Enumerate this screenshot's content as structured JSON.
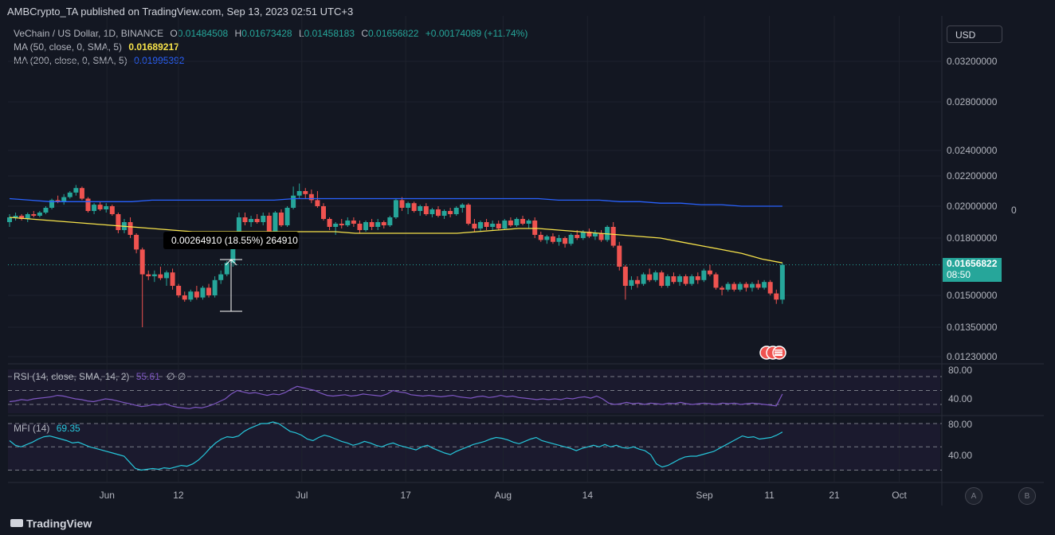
{
  "header": {
    "publisher": "AMBCrypto_TA published on TradingView.com, Sep 13, 2023 02:51 UTC+3"
  },
  "legend": {
    "symbol": "VeChain / US Dollar, 1D, BINANCE",
    "ohlc": {
      "o_label": "O",
      "o": "0.01484508",
      "h_label": "H",
      "h": "0.01673428",
      "l_label": "L",
      "l": "0.01458183",
      "c_label": "C",
      "c": "0.01656822",
      "change": "+0.00174089 (+11.74%)"
    },
    "ma50_label": "MA (50, close, 0, SMA, 5)",
    "ma50_value": "0.01689217",
    "ma200_label": "MA (200, close, 0, SMA, 5)",
    "ma200_value": "0.01995392"
  },
  "toolbar": {
    "currency": "USD"
  },
  "price_tag": {
    "price": "0.01656822",
    "countdown": "08:50"
  },
  "right_zero": "0",
  "measure": {
    "text": "0.00264910 (18.55%) 264910"
  },
  "rsi": {
    "label": "RSI (14, close, SMA, 14, 2)",
    "value": "55.61",
    "extra": "∅ ∅",
    "ticks": [
      "80.00",
      "40.00"
    ]
  },
  "mfi": {
    "label": "MFI (14)",
    "value": "69.35",
    "ticks": [
      "80.00",
      "40.00"
    ]
  },
  "branding": "TradingView",
  "bottom_buttons": [
    "A",
    "B"
  ],
  "colors": {
    "up": "#26a69a",
    "down": "#ef5350",
    "ma50": "#f7e34a",
    "ma200": "#2962ff",
    "rsi": "#7e57c2",
    "mfi": "#26c6da",
    "background": "#131722"
  },
  "chart_data": {
    "type": "candlestick",
    "x_ticks": [
      "Jun",
      "12",
      "Jul",
      "17",
      "Aug",
      "14",
      "Sep",
      "11",
      "21",
      "Oct"
    ],
    "y_ticks": [
      "0.03200000",
      "0.02800000",
      "0.02400000",
      "0.02200000",
      "0.02000000",
      "0.01800000",
      "0.01500000",
      "0.01350000",
      "0.01230000"
    ],
    "start_date": "2023-05-17",
    "end_date": "2023-09-13",
    "candles": [
      {
        "o": 0.019,
        "h": 0.0195,
        "l": 0.0187,
        "c": 0.0193
      },
      {
        "o": 0.0193,
        "h": 0.0196,
        "l": 0.0191,
        "c": 0.0194
      },
      {
        "o": 0.0194,
        "h": 0.0195,
        "l": 0.0191,
        "c": 0.0192
      },
      {
        "o": 0.0192,
        "h": 0.0196,
        "l": 0.019,
        "c": 0.0195
      },
      {
        "o": 0.0195,
        "h": 0.0197,
        "l": 0.0193,
        "c": 0.0194
      },
      {
        "o": 0.0194,
        "h": 0.0197,
        "l": 0.0193,
        "c": 0.0196
      },
      {
        "o": 0.0196,
        "h": 0.02,
        "l": 0.0195,
        "c": 0.0199
      },
      {
        "o": 0.0199,
        "h": 0.0205,
        "l": 0.0198,
        "c": 0.0204
      },
      {
        "o": 0.0204,
        "h": 0.0207,
        "l": 0.0202,
        "c": 0.0203
      },
      {
        "o": 0.0203,
        "h": 0.0208,
        "l": 0.0201,
        "c": 0.0206
      },
      {
        "o": 0.0206,
        "h": 0.021,
        "l": 0.0205,
        "c": 0.0209
      },
      {
        "o": 0.0209,
        "h": 0.0214,
        "l": 0.0207,
        "c": 0.0212
      },
      {
        "o": 0.0212,
        "h": 0.0213,
        "l": 0.0204,
        "c": 0.0205
      },
      {
        "o": 0.0205,
        "h": 0.0206,
        "l": 0.0196,
        "c": 0.0197
      },
      {
        "o": 0.0197,
        "h": 0.0202,
        "l": 0.0195,
        "c": 0.0201
      },
      {
        "o": 0.0201,
        "h": 0.0203,
        "l": 0.0197,
        "c": 0.0198
      },
      {
        "o": 0.0198,
        "h": 0.0202,
        "l": 0.0196,
        "c": 0.02
      },
      {
        "o": 0.02,
        "h": 0.0201,
        "l": 0.0194,
        "c": 0.0195
      },
      {
        "o": 0.0195,
        "h": 0.0196,
        "l": 0.0183,
        "c": 0.0185
      },
      {
        "o": 0.0185,
        "h": 0.0192,
        "l": 0.0183,
        "c": 0.019
      },
      {
        "o": 0.019,
        "h": 0.0193,
        "l": 0.018,
        "c": 0.0182
      },
      {
        "o": 0.0182,
        "h": 0.0183,
        "l": 0.0172,
        "c": 0.0174
      },
      {
        "o": 0.0174,
        "h": 0.0175,
        "l": 0.0135,
        "c": 0.0161
      },
      {
        "o": 0.0161,
        "h": 0.0163,
        "l": 0.0158,
        "c": 0.016
      },
      {
        "o": 0.016,
        "h": 0.0163,
        "l": 0.0157,
        "c": 0.0161
      },
      {
        "o": 0.0161,
        "h": 0.0165,
        "l": 0.0158,
        "c": 0.0159
      },
      {
        "o": 0.0159,
        "h": 0.0163,
        "l": 0.0155,
        "c": 0.0162
      },
      {
        "o": 0.0162,
        "h": 0.0164,
        "l": 0.0153,
        "c": 0.0155
      },
      {
        "o": 0.0155,
        "h": 0.0156,
        "l": 0.0149,
        "c": 0.015
      },
      {
        "o": 0.015,
        "h": 0.0152,
        "l": 0.0147,
        "c": 0.0148
      },
      {
        "o": 0.0148,
        "h": 0.0153,
        "l": 0.0147,
        "c": 0.0152
      },
      {
        "o": 0.0152,
        "h": 0.0155,
        "l": 0.0148,
        "c": 0.0149
      },
      {
        "o": 0.0149,
        "h": 0.0155,
        "l": 0.0148,
        "c": 0.0154
      },
      {
        "o": 0.0154,
        "h": 0.0156,
        "l": 0.0149,
        "c": 0.015
      },
      {
        "o": 0.015,
        "h": 0.016,
        "l": 0.0149,
        "c": 0.0158
      },
      {
        "o": 0.0158,
        "h": 0.0163,
        "l": 0.0156,
        "c": 0.0161
      },
      {
        "o": 0.0161,
        "h": 0.0168,
        "l": 0.016,
        "c": 0.0167
      },
      {
        "o": 0.0167,
        "h": 0.018,
        "l": 0.0165,
        "c": 0.0178
      },
      {
        "o": 0.0178,
        "h": 0.0196,
        "l": 0.0176,
        "c": 0.0193
      },
      {
        "o": 0.0193,
        "h": 0.0196,
        "l": 0.0188,
        "c": 0.019
      },
      {
        "o": 0.019,
        "h": 0.0194,
        "l": 0.0187,
        "c": 0.0192
      },
      {
        "o": 0.0192,
        "h": 0.0195,
        "l": 0.0189,
        "c": 0.019
      },
      {
        "o": 0.019,
        "h": 0.0196,
        "l": 0.0188,
        "c": 0.0194
      },
      {
        "o": 0.0194,
        "h": 0.0196,
        "l": 0.018,
        "c": 0.0181
      },
      {
        "o": 0.0181,
        "h": 0.0197,
        "l": 0.018,
        "c": 0.0196
      },
      {
        "o": 0.0196,
        "h": 0.0198,
        "l": 0.0187,
        "c": 0.0188
      },
      {
        "o": 0.0188,
        "h": 0.02,
        "l": 0.0187,
        "c": 0.0199
      },
      {
        "o": 0.0199,
        "h": 0.0213,
        "l": 0.0198,
        "c": 0.0207
      },
      {
        "o": 0.0207,
        "h": 0.0215,
        "l": 0.0205,
        "c": 0.021
      },
      {
        "o": 0.021,
        "h": 0.0212,
        "l": 0.0205,
        "c": 0.0208
      },
      {
        "o": 0.0208,
        "h": 0.0211,
        "l": 0.0202,
        "c": 0.0204
      },
      {
        "o": 0.0204,
        "h": 0.021,
        "l": 0.0199,
        "c": 0.02
      },
      {
        "o": 0.02,
        "h": 0.0202,
        "l": 0.0191,
        "c": 0.0192
      },
      {
        "o": 0.0192,
        "h": 0.0193,
        "l": 0.0185,
        "c": 0.0187
      },
      {
        "o": 0.0187,
        "h": 0.019,
        "l": 0.0182,
        "c": 0.0189
      },
      {
        "o": 0.0189,
        "h": 0.0192,
        "l": 0.0186,
        "c": 0.0188
      },
      {
        "o": 0.0188,
        "h": 0.0193,
        "l": 0.0187,
        "c": 0.0191
      },
      {
        "o": 0.0191,
        "h": 0.0193,
        "l": 0.0187,
        "c": 0.0189
      },
      {
        "o": 0.0189,
        "h": 0.0191,
        "l": 0.0183,
        "c": 0.0185
      },
      {
        "o": 0.0185,
        "h": 0.0191,
        "l": 0.0184,
        "c": 0.019
      },
      {
        "o": 0.019,
        "h": 0.0192,
        "l": 0.0185,
        "c": 0.0187
      },
      {
        "o": 0.0187,
        "h": 0.0192,
        "l": 0.0185,
        "c": 0.019
      },
      {
        "o": 0.019,
        "h": 0.0191,
        "l": 0.0186,
        "c": 0.0188
      },
      {
        "o": 0.0188,
        "h": 0.0194,
        "l": 0.0187,
        "c": 0.0193
      },
      {
        "o": 0.0193,
        "h": 0.0205,
        "l": 0.0192,
        "c": 0.0204
      },
      {
        "o": 0.0204,
        "h": 0.0206,
        "l": 0.0197,
        "c": 0.0199
      },
      {
        "o": 0.0199,
        "h": 0.0203,
        "l": 0.0195,
        "c": 0.0202
      },
      {
        "o": 0.0202,
        "h": 0.0203,
        "l": 0.0196,
        "c": 0.0197
      },
      {
        "o": 0.0197,
        "h": 0.0201,
        "l": 0.0194,
        "c": 0.02
      },
      {
        "o": 0.02,
        "h": 0.0202,
        "l": 0.0194,
        "c": 0.0195
      },
      {
        "o": 0.0195,
        "h": 0.0199,
        "l": 0.0193,
        "c": 0.0198
      },
      {
        "o": 0.0198,
        "h": 0.02,
        "l": 0.0193,
        "c": 0.0194
      },
      {
        "o": 0.0194,
        "h": 0.0198,
        "l": 0.0192,
        "c": 0.0197
      },
      {
        "o": 0.0197,
        "h": 0.0199,
        "l": 0.0193,
        "c": 0.0195
      },
      {
        "o": 0.0195,
        "h": 0.02,
        "l": 0.0194,
        "c": 0.0199
      },
      {
        "o": 0.0199,
        "h": 0.0202,
        "l": 0.0196,
        "c": 0.0201
      },
      {
        "o": 0.0201,
        "h": 0.0202,
        "l": 0.0188,
        "c": 0.0189
      },
      {
        "o": 0.0189,
        "h": 0.0192,
        "l": 0.0184,
        "c": 0.0186
      },
      {
        "o": 0.0186,
        "h": 0.0191,
        "l": 0.0184,
        "c": 0.019
      },
      {
        "o": 0.019,
        "h": 0.0192,
        "l": 0.0185,
        "c": 0.0187
      },
      {
        "o": 0.0187,
        "h": 0.0191,
        "l": 0.0185,
        "c": 0.0189
      },
      {
        "o": 0.0189,
        "h": 0.0191,
        "l": 0.0185,
        "c": 0.0186
      },
      {
        "o": 0.0186,
        "h": 0.0192,
        "l": 0.0185,
        "c": 0.0191
      },
      {
        "o": 0.0191,
        "h": 0.0193,
        "l": 0.0187,
        "c": 0.0188
      },
      {
        "o": 0.0188,
        "h": 0.0193,
        "l": 0.0187,
        "c": 0.0192
      },
      {
        "o": 0.0192,
        "h": 0.0194,
        "l": 0.0188,
        "c": 0.0189
      },
      {
        "o": 0.0189,
        "h": 0.0192,
        "l": 0.0186,
        "c": 0.0191
      },
      {
        "o": 0.0191,
        "h": 0.0193,
        "l": 0.018,
        "c": 0.0182
      },
      {
        "o": 0.0182,
        "h": 0.0184,
        "l": 0.0178,
        "c": 0.0179
      },
      {
        "o": 0.0179,
        "h": 0.0182,
        "l": 0.0177,
        "c": 0.0181
      },
      {
        "o": 0.0181,
        "h": 0.0183,
        "l": 0.0177,
        "c": 0.0178
      },
      {
        "o": 0.0178,
        "h": 0.0182,
        "l": 0.0176,
        "c": 0.018
      },
      {
        "o": 0.018,
        "h": 0.0181,
        "l": 0.0175,
        "c": 0.0177
      },
      {
        "o": 0.0177,
        "h": 0.0183,
        "l": 0.0176,
        "c": 0.0182
      },
      {
        "o": 0.0182,
        "h": 0.0185,
        "l": 0.0179,
        "c": 0.018
      },
      {
        "o": 0.018,
        "h": 0.0185,
        "l": 0.0179,
        "c": 0.0184
      },
      {
        "o": 0.0184,
        "h": 0.0186,
        "l": 0.018,
        "c": 0.0181
      },
      {
        "o": 0.0181,
        "h": 0.0185,
        "l": 0.0179,
        "c": 0.0183
      },
      {
        "o": 0.0183,
        "h": 0.0185,
        "l": 0.0178,
        "c": 0.0179
      },
      {
        "o": 0.0179,
        "h": 0.0188,
        "l": 0.0178,
        "c": 0.0187
      },
      {
        "o": 0.0187,
        "h": 0.019,
        "l": 0.0175,
        "c": 0.0176
      },
      {
        "o": 0.0176,
        "h": 0.0178,
        "l": 0.0163,
        "c": 0.0165
      },
      {
        "o": 0.0165,
        "h": 0.0166,
        "l": 0.0148,
        "c": 0.0155
      },
      {
        "o": 0.0155,
        "h": 0.016,
        "l": 0.0153,
        "c": 0.0158
      },
      {
        "o": 0.0158,
        "h": 0.016,
        "l": 0.0154,
        "c": 0.0156
      },
      {
        "o": 0.0156,
        "h": 0.0162,
        "l": 0.0155,
        "c": 0.0161
      },
      {
        "o": 0.0161,
        "h": 0.0164,
        "l": 0.0157,
        "c": 0.0158
      },
      {
        "o": 0.0158,
        "h": 0.0163,
        "l": 0.0157,
        "c": 0.0162
      },
      {
        "o": 0.0162,
        "h": 0.0163,
        "l": 0.0154,
        "c": 0.0155
      },
      {
        "o": 0.0155,
        "h": 0.0161,
        "l": 0.0154,
        "c": 0.016
      },
      {
        "o": 0.016,
        "h": 0.0162,
        "l": 0.0156,
        "c": 0.0157
      },
      {
        "o": 0.0157,
        "h": 0.0161,
        "l": 0.0155,
        "c": 0.016
      },
      {
        "o": 0.016,
        "h": 0.0161,
        "l": 0.0155,
        "c": 0.0156
      },
      {
        "o": 0.0156,
        "h": 0.0161,
        "l": 0.0155,
        "c": 0.016
      },
      {
        "o": 0.016,
        "h": 0.0162,
        "l": 0.0156,
        "c": 0.0158
      },
      {
        "o": 0.0158,
        "h": 0.0164,
        "l": 0.0157,
        "c": 0.0163
      },
      {
        "o": 0.0163,
        "h": 0.0166,
        "l": 0.016,
        "c": 0.0161
      },
      {
        "o": 0.0161,
        "h": 0.0162,
        "l": 0.0153,
        "c": 0.0154
      },
      {
        "o": 0.0154,
        "h": 0.0155,
        "l": 0.015,
        "c": 0.0153
      },
      {
        "o": 0.0153,
        "h": 0.0157,
        "l": 0.0152,
        "c": 0.0156
      },
      {
        "o": 0.0156,
        "h": 0.0157,
        "l": 0.0152,
        "c": 0.0153
      },
      {
        "o": 0.0153,
        "h": 0.0157,
        "l": 0.0152,
        "c": 0.0156
      },
      {
        "o": 0.0156,
        "h": 0.0157,
        "l": 0.0152,
        "c": 0.0154
      },
      {
        "o": 0.0154,
        "h": 0.0157,
        "l": 0.0152,
        "c": 0.0156
      },
      {
        "o": 0.0156,
        "h": 0.0158,
        "l": 0.0153,
        "c": 0.0154
      },
      {
        "o": 0.0154,
        "h": 0.0158,
        "l": 0.0153,
        "c": 0.0157
      },
      {
        "o": 0.0157,
        "h": 0.0158,
        "l": 0.015,
        "c": 0.0151
      },
      {
        "o": 0.0151,
        "h": 0.0153,
        "l": 0.0146,
        "c": 0.0148
      },
      {
        "o": 0.0148,
        "h": 0.0167,
        "l": 0.0146,
        "c": 0.0166
      }
    ],
    "ma50": [
      0.0193,
      0.0192,
      0.0191,
      0.019,
      0.0189,
      0.0188,
      0.0187,
      0.0186,
      0.0185,
      0.0184,
      0.0184,
      0.0184,
      0.0184,
      0.0184,
      0.0184,
      0.0184,
      0.0184,
      0.0183,
      0.0183,
      0.0183,
      0.0183,
      0.0183,
      0.0183,
      0.0184,
      0.0185,
      0.0186,
      0.0186,
      0.0185,
      0.0184,
      0.0183,
      0.0182,
      0.0181,
      0.018,
      0.0178,
      0.0176,
      0.0174,
      0.0172,
      0.0169,
      0.0167
    ],
    "ma200": [
      0.0205,
      0.0204,
      0.0203,
      0.0203,
      0.0203,
      0.0203,
      0.0203,
      0.0204,
      0.0204,
      0.0204,
      0.0204,
      0.0204,
      0.0204,
      0.0204,
      0.0205,
      0.0205,
      0.0205,
      0.0205,
      0.0205,
      0.0205,
      0.0205,
      0.0205,
      0.0205,
      0.0205,
      0.0205,
      0.0205,
      0.0205,
      0.0204,
      0.0204,
      0.0204,
      0.0203,
      0.0203,
      0.0202,
      0.0202,
      0.0201,
      0.0201,
      0.02,
      0.02,
      0.02
    ],
    "rsi": [
      44,
      45,
      47,
      46,
      48,
      49,
      50,
      51,
      53,
      52,
      50,
      48,
      47,
      45,
      44,
      46,
      48,
      47,
      45,
      43,
      41,
      39,
      37,
      38,
      40,
      39,
      41,
      38,
      36,
      35,
      34,
      36,
      35,
      37,
      40,
      44,
      48,
      55,
      60,
      58,
      56,
      57,
      55,
      53,
      55,
      54,
      57,
      62,
      66,
      64,
      62,
      60,
      56,
      53,
      52,
      53,
      54,
      52,
      53,
      55,
      54,
      53,
      52,
      55,
      60,
      58,
      57,
      54,
      53,
      52,
      53,
      52,
      51,
      52,
      53,
      51,
      50,
      49,
      51,
      52,
      50,
      51,
      53,
      51,
      52,
      50,
      49,
      48,
      47,
      48,
      47,
      48,
      47,
      49,
      48,
      50,
      51,
      49,
      52,
      48,
      42,
      40,
      41,
      43,
      41,
      42,
      40,
      42,
      41,
      40,
      42,
      41,
      43,
      41,
      40,
      41,
      42,
      41,
      40,
      42,
      41,
      42,
      40,
      41,
      42,
      41,
      40,
      39,
      38,
      55
    ],
    "mfi": [
      58,
      52,
      50,
      53,
      56,
      60,
      63,
      64,
      62,
      60,
      58,
      55,
      56,
      53,
      50,
      48,
      46,
      44,
      42,
      40,
      38,
      30,
      22,
      20,
      21,
      22,
      21,
      23,
      22,
      24,
      26,
      25,
      28,
      33,
      40,
      48,
      55,
      60,
      63,
      62,
      64,
      70,
      74,
      77,
      80,
      80,
      82,
      80,
      75,
      70,
      68,
      65,
      60,
      58,
      62,
      65,
      63,
      60,
      57,
      55,
      52,
      54,
      57,
      55,
      52,
      50,
      53,
      55,
      52,
      50,
      48,
      46,
      50,
      52,
      48,
      45,
      42,
      40,
      44,
      47,
      50,
      53,
      55,
      57,
      60,
      62,
      61,
      59,
      56,
      54,
      57,
      60,
      62,
      58,
      56,
      54,
      52,
      50,
      48,
      45,
      48,
      50,
      52,
      50,
      53,
      50,
      52,
      49,
      48,
      50,
      47,
      45,
      40,
      28,
      24,
      26,
      30,
      34,
      37,
      38,
      38,
      40,
      42,
      44,
      48,
      52,
      56,
      60,
      64,
      62,
      63,
      60,
      61,
      62,
      65,
      69
    ]
  }
}
